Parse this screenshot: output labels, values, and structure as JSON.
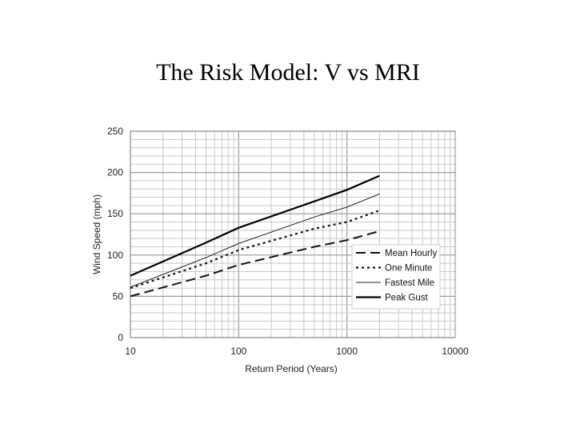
{
  "slide": {
    "title": "The Risk Model: V vs MRI"
  },
  "chart_data": {
    "type": "line",
    "title": "",
    "xlabel": "Return Period (Years)",
    "ylabel": "Wind Speed (mph)",
    "xscale": "log",
    "xlim": [
      10,
      10000
    ],
    "ylim": [
      0,
      250
    ],
    "x_ticks": [
      "10",
      "100",
      "1000",
      "10000"
    ],
    "y_ticks": [
      "0",
      "50",
      "100",
      "150",
      "200",
      "250"
    ],
    "grid": true,
    "legend_position": "lower-right",
    "series": [
      {
        "name": "Mean Hourly",
        "style": "dashed",
        "x": [
          10,
          50,
          100,
          500,
          1000,
          2000
        ],
        "y": [
          50,
          75,
          88,
          110,
          118,
          129
        ]
      },
      {
        "name": "One Minute",
        "style": "dotted",
        "x": [
          10,
          50,
          100,
          500,
          1000,
          2000
        ],
        "y": [
          60,
          90,
          106,
          132,
          140,
          154
        ]
      },
      {
        "name": "Fastest Mile",
        "style": "thin",
        "x": [
          10,
          50,
          100,
          500,
          1000,
          2000
        ],
        "y": [
          61,
          97,
          114,
          146,
          158,
          174
        ]
      },
      {
        "name": "Peak Gust",
        "style": "solid",
        "x": [
          10,
          50,
          100,
          500,
          1000,
          2000
        ],
        "y": [
          75,
          115,
          133,
          165,
          179,
          196
        ]
      }
    ]
  }
}
